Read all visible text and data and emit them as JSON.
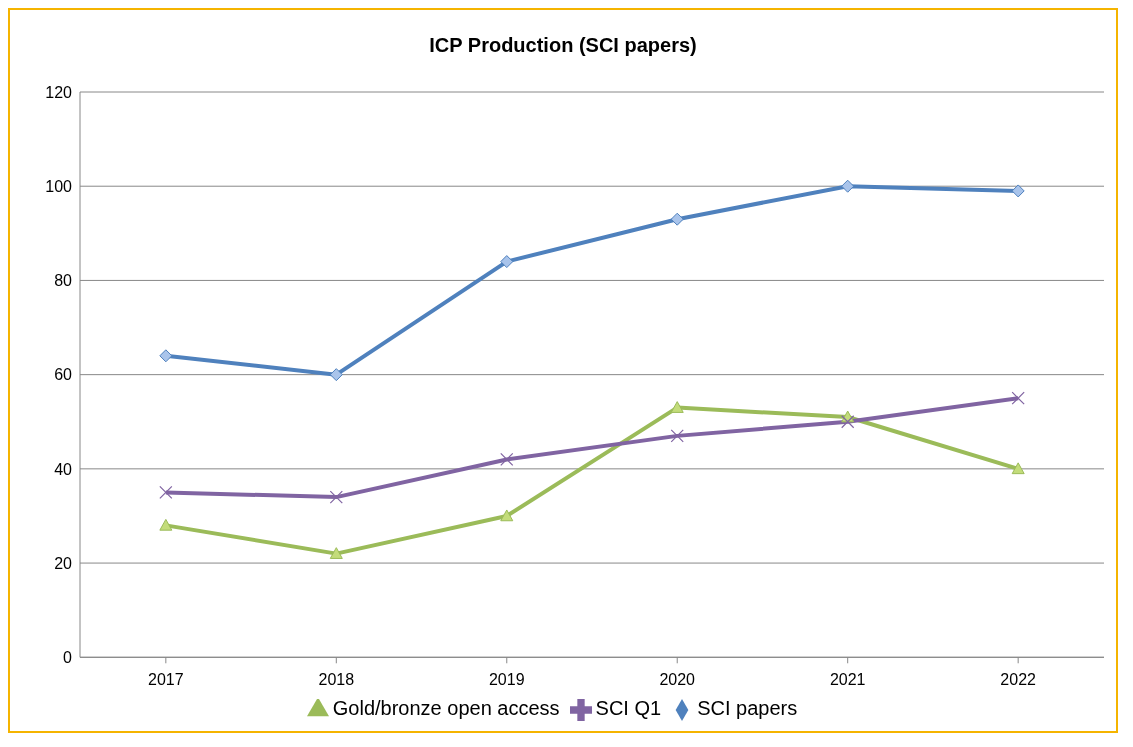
{
  "chart_data": {
    "type": "line",
    "title": "ICP Production (SCI papers)",
    "categories": [
      "2017",
      "2018",
      "2019",
      "2020",
      "2021",
      "2022"
    ],
    "series": [
      {
        "name": "SCI papers",
        "color": "#4f81bd",
        "marker": "diamond",
        "values": [
          64,
          60,
          84,
          93,
          100,
          99
        ]
      },
      {
        "name": "Gold/bronze open access",
        "color": "#9bbb59",
        "marker": "triangle",
        "values": [
          28,
          22,
          30,
          53,
          51,
          40
        ]
      },
      {
        "name": "SCI Q1",
        "color": "#8064a2",
        "marker": "cross",
        "values": [
          35,
          34,
          42,
          47,
          50,
          55
        ]
      }
    ],
    "ylim": [
      0,
      120
    ],
    "yticks": [
      0,
      20,
      40,
      60,
      80,
      100,
      120
    ],
    "grid": "y",
    "legend": "bottom"
  }
}
